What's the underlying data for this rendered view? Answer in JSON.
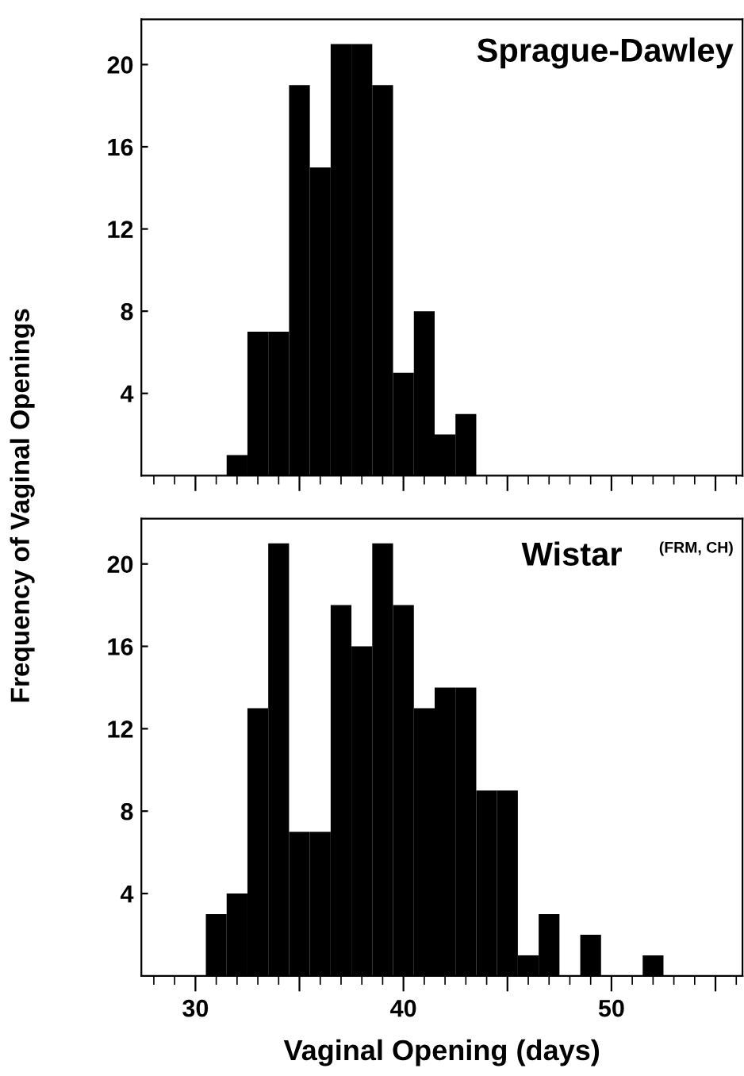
{
  "chart_data": [
    {
      "type": "histogram",
      "title": "Sprague-Dawley",
      "ylabel": "Frequency of Vaginal Openings",
      "color": "#000000",
      "bins": [
        31.5,
        32.5,
        33.5,
        34.5,
        35.5,
        36.5,
        37.5,
        38.5,
        39.5,
        40.5,
        41.5,
        42.5,
        43.5
      ],
      "values": [
        1,
        7,
        7,
        19,
        15,
        21,
        21,
        19,
        5,
        8,
        2,
        3
      ],
      "xlim": [
        27.4,
        56.3
      ],
      "ylim": [
        0,
        22.2
      ],
      "xticks": [
        {
          "value": 30,
          "label": null
        },
        {
          "value": 35,
          "label": null
        },
        {
          "value": 40,
          "label": null
        },
        {
          "value": 45,
          "label": null
        },
        {
          "value": 50,
          "label": null
        },
        {
          "value": 55,
          "label": null
        }
      ],
      "yticks": [
        4,
        8,
        12,
        16,
        20
      ],
      "tick_labels": "y",
      "grid": false,
      "legend": false
    },
    {
      "type": "histogram",
      "title": "Wistar",
      "subtitle": "(FRM, CH)",
      "xlabel": "Vaginal Opening (days)",
      "color": "#000000",
      "bins": [
        30.5,
        31.5,
        32.5,
        33.5,
        34.5,
        35.5,
        36.5,
        37.5,
        38.5,
        39.5,
        40.5,
        41.5,
        42.5,
        43.5,
        44.5,
        45.5,
        46.5,
        47.5,
        48.5,
        49.5,
        50.5,
        51.5,
        52.5
      ],
      "values": [
        3,
        4,
        13,
        21,
        7,
        7,
        18,
        16,
        21,
        18,
        13,
        14,
        14,
        9,
        9,
        1,
        3,
        0,
        2,
        0,
        0,
        1
      ],
      "xlim": [
        27.4,
        56.3
      ],
      "ylim": [
        0,
        22.2
      ],
      "xticks": [
        30,
        {
          "value": 35,
          "label": null
        },
        40,
        {
          "value": 45,
          "label": null
        },
        50,
        {
          "value": 55,
          "label": null
        }
      ],
      "yticks": [
        4,
        8,
        12,
        16,
        20
      ],
      "grid": false,
      "legend": false
    }
  ]
}
